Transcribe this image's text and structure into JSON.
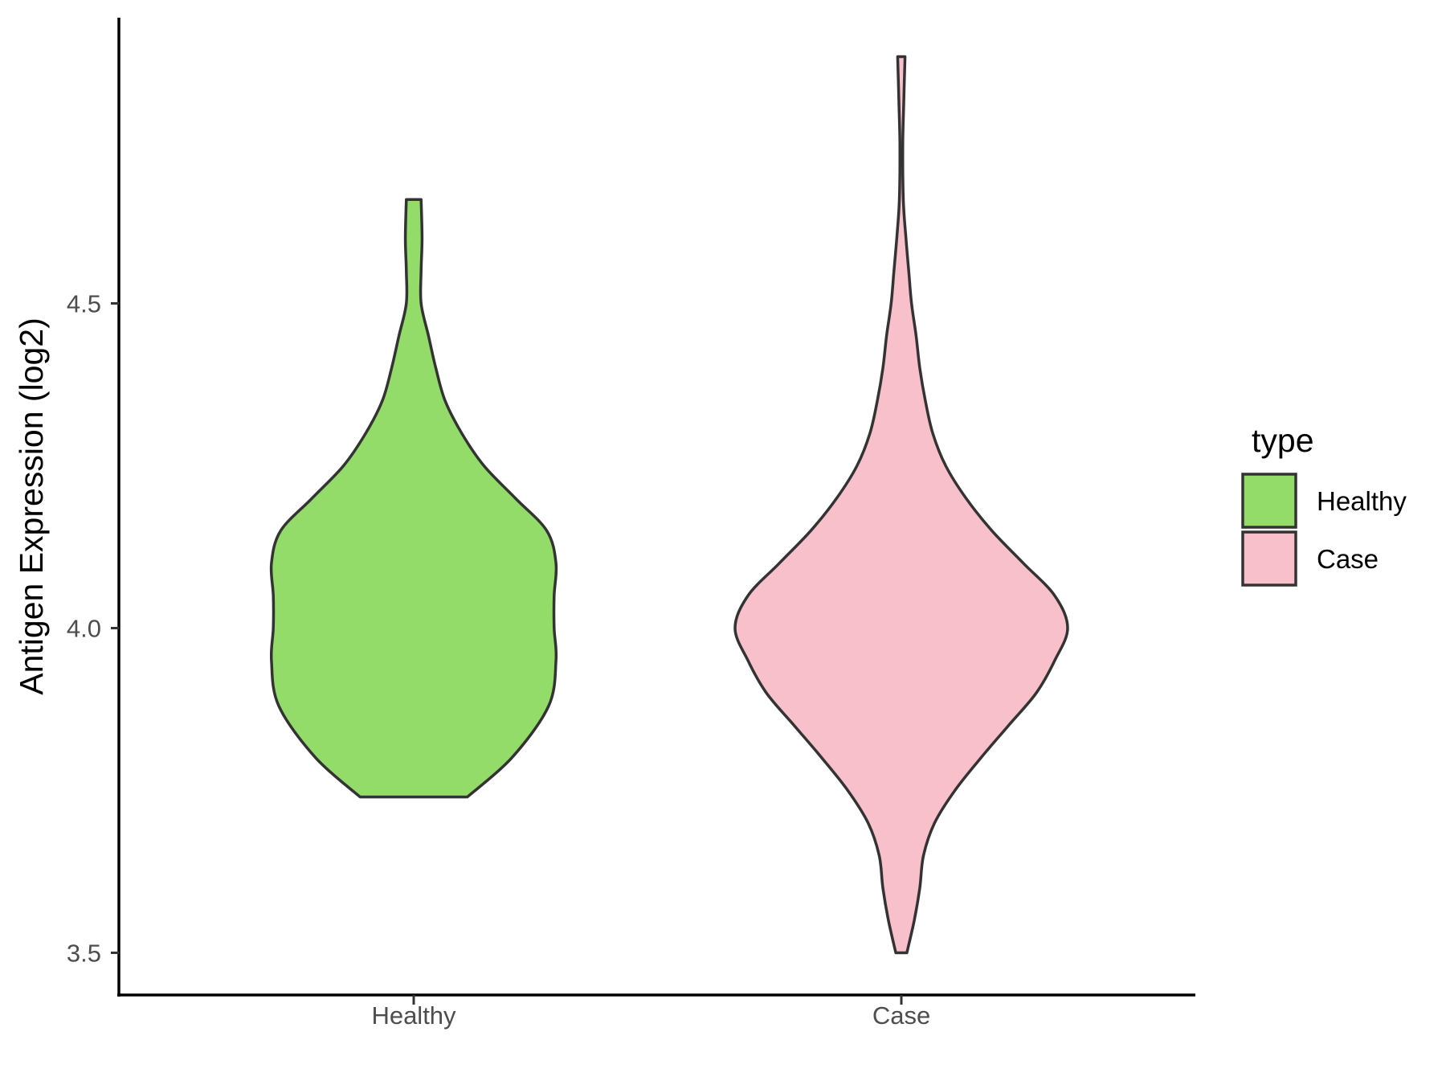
{
  "chart_data": {
    "type": "violin",
    "ylabel": "Antigen Expression (log2)",
    "xlabel": "",
    "categories": [
      "Healthy",
      "Case"
    ],
    "yticks": [
      "3.5",
      "4.0",
      "4.5"
    ],
    "ylim": [
      3.435,
      4.94
    ],
    "legend": {
      "title": "type",
      "position": "right",
      "entries": [
        "Healthy",
        "Case"
      ]
    },
    "grid": false,
    "series": [
      {
        "name": "Healthy",
        "color": "#94dc6a",
        "min": 3.74,
        "max": 4.66,
        "density": [
          [
            3.74,
            0.29
          ],
          [
            3.8,
            0.53
          ],
          [
            3.88,
            0.73
          ],
          [
            3.95,
            0.77
          ],
          [
            4.0,
            0.76
          ],
          [
            4.05,
            0.76
          ],
          [
            4.1,
            0.77
          ],
          [
            4.15,
            0.72
          ],
          [
            4.2,
            0.55
          ],
          [
            4.25,
            0.38
          ],
          [
            4.3,
            0.26
          ],
          [
            4.35,
            0.17
          ],
          [
            4.4,
            0.12
          ],
          [
            4.45,
            0.08
          ],
          [
            4.5,
            0.04
          ],
          [
            4.55,
            0.04
          ],
          [
            4.6,
            0.045
          ],
          [
            4.66,
            0.04
          ]
        ]
      },
      {
        "name": "Case",
        "color": "#f8c0cb",
        "min": 3.5,
        "max": 4.88,
        "density": [
          [
            3.5,
            0.03
          ],
          [
            3.55,
            0.07
          ],
          [
            3.6,
            0.1
          ],
          [
            3.65,
            0.12
          ],
          [
            3.7,
            0.18
          ],
          [
            3.75,
            0.29
          ],
          [
            3.8,
            0.43
          ],
          [
            3.85,
            0.58
          ],
          [
            3.9,
            0.73
          ],
          [
            3.95,
            0.83
          ],
          [
            4.0,
            0.9
          ],
          [
            4.05,
            0.83
          ],
          [
            4.1,
            0.66
          ],
          [
            4.15,
            0.49
          ],
          [
            4.2,
            0.35
          ],
          [
            4.25,
            0.24
          ],
          [
            4.3,
            0.17
          ],
          [
            4.35,
            0.13
          ],
          [
            4.4,
            0.1
          ],
          [
            4.45,
            0.08
          ],
          [
            4.5,
            0.055
          ],
          [
            4.55,
            0.04
          ],
          [
            4.6,
            0.025
          ],
          [
            4.65,
            0.012
          ],
          [
            4.7,
            0.008
          ],
          [
            4.75,
            0.008
          ],
          [
            4.8,
            0.012
          ],
          [
            4.88,
            0.02
          ]
        ]
      }
    ]
  }
}
